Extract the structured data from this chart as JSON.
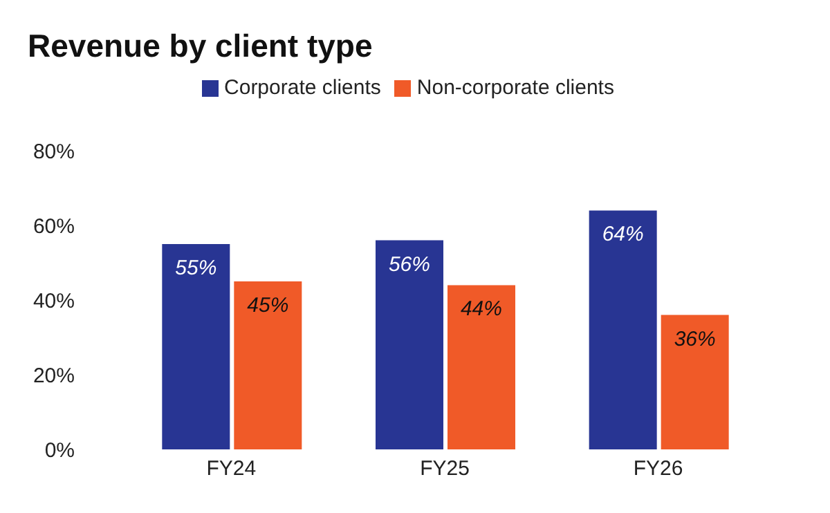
{
  "chart_data": {
    "type": "bar",
    "title": "Revenue by client type",
    "categories": [
      "FY24",
      "FY25",
      "FY26"
    ],
    "series": [
      {
        "name": "Corporate clients",
        "color": "#283593",
        "values": [
          55,
          56,
          64
        ],
        "value_labels": [
          "55%",
          "56%",
          "64%"
        ]
      },
      {
        "name": "Non-corporate clients",
        "color": "#f05a28",
        "values": [
          45,
          44,
          36
        ],
        "value_labels": [
          "45%",
          "44%",
          "36%"
        ]
      }
    ],
    "ylim": [
      0,
      80
    ],
    "yticks": [
      {
        "value": 0,
        "label": "0%"
      },
      {
        "value": 20,
        "label": "20%"
      },
      {
        "value": 40,
        "label": "40%"
      },
      {
        "value": 60,
        "label": "60%"
      },
      {
        "value": 80,
        "label": "80%"
      }
    ],
    "grid": false,
    "legend": "top"
  }
}
